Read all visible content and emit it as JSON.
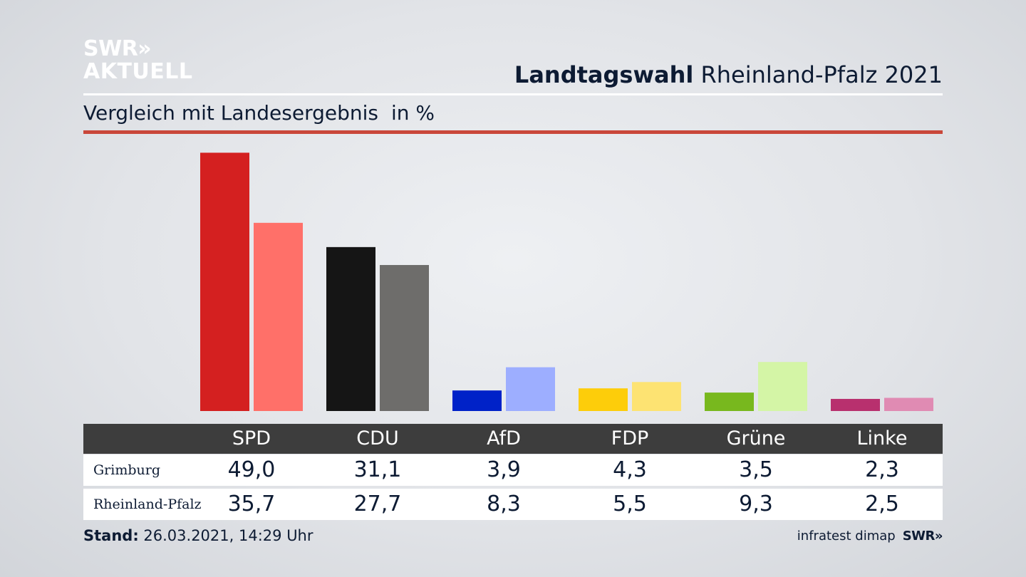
{
  "brand": {
    "line1": "SWR»",
    "line2": "AKTUELL"
  },
  "header": {
    "title_bold": "Landtagswahl",
    "title_rest": "Rheinland-Pfalz 2021",
    "subtitle": "Vergleich mit Landesergebnis",
    "unit": "in %"
  },
  "chart_data": {
    "type": "bar",
    "title": "Vergleich mit Landesergebnis",
    "ylabel": "in %",
    "ylim": [
      0,
      50
    ],
    "grid": false,
    "categories": [
      "SPD",
      "CDU",
      "AfD",
      "FDP",
      "Grüne",
      "Linke"
    ],
    "series": [
      {
        "name": "Grimburg",
        "values": [
          49.0,
          31.1,
          3.9,
          4.3,
          3.5,
          2.3
        ],
        "display": [
          "49,0",
          "31,1",
          "3,9",
          "4,3",
          "3,5",
          "2,3"
        ],
        "colors": [
          "#d42020",
          "#151515",
          "#0022c8",
          "#fdcd0a",
          "#78b81e",
          "#b8306e"
        ]
      },
      {
        "name": "Rheinland-Pfalz",
        "values": [
          35.7,
          27.7,
          8.3,
          5.5,
          9.3,
          2.5
        ],
        "display": [
          "35,7",
          "27,7",
          "8,3",
          "5,5",
          "9,3",
          "2,5"
        ],
        "colors": [
          "#ff7069",
          "#6e6d6b",
          "#9daeff",
          "#fde372",
          "#d4f5a6",
          "#e08bb3"
        ]
      }
    ]
  },
  "footer": {
    "stand_label": "Stand:",
    "stand_value": "26.03.2021, 14:29 Uhr",
    "source": "infratest dimap",
    "source_logo": "SWR»"
  }
}
